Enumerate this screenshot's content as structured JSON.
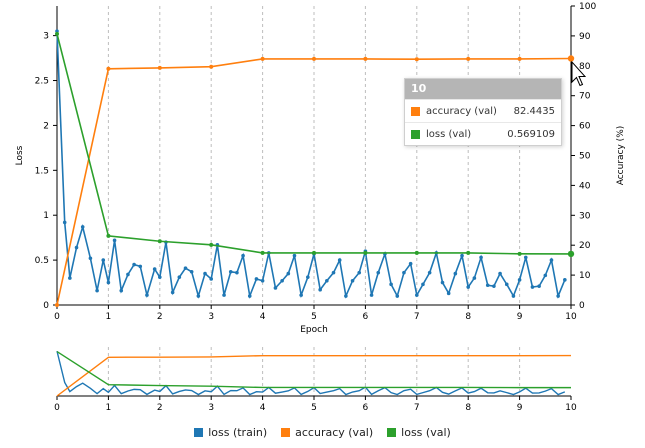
{
  "chart_data": {
    "type": "line",
    "xlabel": "Epoch",
    "ylabel_left": "Loss",
    "ylabel_right": "Accuracy (%)",
    "xlim": [
      0,
      10
    ],
    "ylim_left": [
      0,
      3.33
    ],
    "ylim_right": [
      0,
      100
    ],
    "x_ticks": [
      0,
      1,
      2,
      3,
      4,
      5,
      6,
      7,
      8,
      9,
      10
    ],
    "y_left_ticks": [
      0,
      0.5,
      1,
      1.5,
      2,
      2.5,
      3
    ],
    "y_right_ticks": [
      0,
      10,
      20,
      30,
      40,
      50,
      60,
      70,
      80,
      90,
      100
    ],
    "grid": "vertical dashed at x ticks",
    "legend_position": "bottom-center",
    "series": [
      {
        "name": "loss (train)",
        "axis": "left",
        "color": "#1f77b4",
        "x": [
          0,
          0.15,
          0.25,
          0.38,
          0.5,
          0.65,
          0.78,
          0.9,
          1.0,
          1.12,
          1.25,
          1.38,
          1.5,
          1.62,
          1.75,
          1.9,
          2.0,
          2.12,
          2.25,
          2.38,
          2.5,
          2.62,
          2.75,
          2.88,
          3.0,
          3.12,
          3.25,
          3.38,
          3.5,
          3.62,
          3.75,
          3.88,
          4.0,
          4.12,
          4.25,
          4.38,
          4.5,
          4.62,
          4.75,
          4.88,
          5.0,
          5.12,
          5.25,
          5.38,
          5.5,
          5.62,
          5.75,
          5.88,
          6.0,
          6.12,
          6.25,
          6.38,
          6.5,
          6.62,
          6.75,
          6.88,
          7.0,
          7.12,
          7.25,
          7.38,
          7.5,
          7.62,
          7.75,
          7.88,
          8.0,
          8.12,
          8.25,
          8.38,
          8.5,
          8.62,
          8.75,
          8.88,
          9.0,
          9.12,
          9.25,
          9.38,
          9.5,
          9.62,
          9.75,
          9.88
        ],
        "values": [
          3.05,
          0.92,
          0.3,
          0.64,
          0.87,
          0.52,
          0.16,
          0.5,
          0.25,
          0.72,
          0.16,
          0.34,
          0.45,
          0.43,
          0.11,
          0.4,
          0.31,
          0.7,
          0.14,
          0.31,
          0.41,
          0.37,
          0.1,
          0.35,
          0.29,
          0.67,
          0.11,
          0.37,
          0.36,
          0.55,
          0.1,
          0.29,
          0.27,
          0.58,
          0.19,
          0.27,
          0.35,
          0.55,
          0.11,
          0.31,
          0.57,
          0.17,
          0.27,
          0.36,
          0.5,
          0.1,
          0.27,
          0.36,
          0.6,
          0.11,
          0.36,
          0.57,
          0.23,
          0.1,
          0.36,
          0.46,
          0.11,
          0.23,
          0.36,
          0.58,
          0.25,
          0.13,
          0.35,
          0.55,
          0.2,
          0.3,
          0.53,
          0.22,
          0.21,
          0.35,
          0.23,
          0.1,
          0.28,
          0.53,
          0.2,
          0.21,
          0.33,
          0.5,
          0.1,
          0.28
        ]
      },
      {
        "name": "accuracy (val)",
        "axis": "right",
        "color": "#ff7f0e",
        "x": [
          0,
          1,
          2,
          3,
          4,
          5,
          6,
          7,
          8,
          9,
          10
        ],
        "values": [
          0,
          79.0,
          79.3,
          79.7,
          82.3,
          82.3,
          82.3,
          82.2,
          82.3,
          82.3,
          82.4435
        ]
      },
      {
        "name": "loss (val)",
        "axis": "left",
        "color": "#2ca02c",
        "x": [
          0,
          1,
          2,
          3,
          4,
          5,
          6,
          7,
          8,
          9,
          10
        ],
        "values": [
          3.02,
          0.77,
          0.71,
          0.67,
          0.58,
          0.58,
          0.58,
          0.58,
          0.58,
          0.57,
          0.569109
        ]
      }
    ]
  },
  "tooltip": {
    "header": "10",
    "rows": [
      {
        "label": "accuracy (val)",
        "value": "82.4435",
        "color": "#ff7f0e"
      },
      {
        "label": "loss (val)",
        "value": "0.569109",
        "color": "#2ca02c"
      }
    ]
  },
  "legend": [
    {
      "label": "loss (train)",
      "color": "#1f77b4"
    },
    {
      "label": "accuracy (val)",
      "color": "#ff7f0e"
    },
    {
      "label": "loss (val)",
      "color": "#2ca02c"
    }
  ]
}
